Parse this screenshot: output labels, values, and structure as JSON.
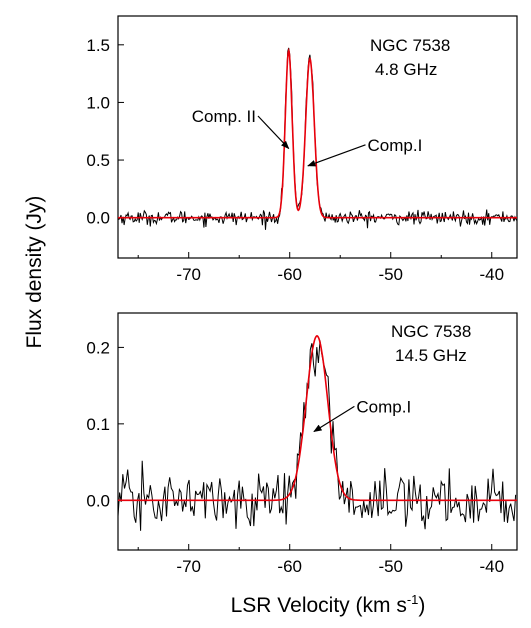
{
  "chart_data": [
    {
      "type": "line",
      "panel": "top",
      "annotation_lines": [
        "NGC 7538",
        "4.8 GHz"
      ],
      "xlim": [
        -77,
        -37.5
      ],
      "ylim": [
        -0.35,
        1.75
      ],
      "x_ticks": [
        -70,
        -60,
        -50,
        -40
      ],
      "x_tick_labels": [
        "-70",
        "-60",
        "-50",
        "-40"
      ],
      "y_ticks": [
        0.0,
        0.5,
        1.0,
        1.5
      ],
      "y_tick_labels": [
        "0.0",
        "0.5",
        "1.0",
        "1.5"
      ],
      "grid": false,
      "series": [
        {
          "style": "observed spectrum",
          "color": "#000000",
          "noise_sigma": 0.03,
          "peaks": [
            {
              "center": -60.1,
              "amplitude": 1.5,
              "fwhm": 0.8
            },
            {
              "center": -58.0,
              "amplitude": 1.42,
              "fwhm": 1.0
            }
          ]
        },
        {
          "style": "gaussian fit",
          "color": "#e8000b",
          "peaks": [
            {
              "center": -60.1,
              "amplitude": 1.45,
              "fwhm": 0.8
            },
            {
              "center": -58.0,
              "amplitude": 1.38,
              "fwhm": 1.0
            }
          ]
        }
      ],
      "annotations": [
        {
          "text": "Comp. II",
          "arrow_to": [
            -60.1,
            0.6
          ],
          "text_at": [
            -69.7,
            0.83
          ]
        },
        {
          "text": "Comp.I",
          "arrow_to": [
            -58.2,
            0.45
          ],
          "text_at": [
            -52.3,
            0.58
          ]
        }
      ]
    },
    {
      "type": "line",
      "panel": "bottom",
      "annotation_lines": [
        "NGC 7538",
        "14.5 GHz"
      ],
      "xlim": [
        -77,
        -37.5
      ],
      "ylim": [
        -0.065,
        0.245
      ],
      "x_ticks": [
        -70,
        -60,
        -50,
        -40
      ],
      "x_tick_labels": [
        "-70",
        "-60",
        "-50",
        "-40"
      ],
      "y_ticks": [
        0.0,
        0.1,
        0.2
      ],
      "y_tick_labels": [
        "0.0",
        "0.1",
        "0.2"
      ],
      "grid": false,
      "series": [
        {
          "style": "observed spectrum",
          "color": "#000000",
          "noise_sigma": 0.018,
          "peaks": [
            {
              "center": -57.3,
              "amplitude": 0.215,
              "fwhm": 2.5
            }
          ]
        },
        {
          "style": "gaussian fit",
          "color": "#e8000b",
          "peaks": [
            {
              "center": -57.3,
              "amplitude": 0.215,
              "fwhm": 2.5
            }
          ]
        }
      ],
      "annotations": [
        {
          "text": "Comp.I",
          "arrow_to": [
            -57.6,
            0.09
          ],
          "text_at": [
            -53.4,
            0.115
          ]
        }
      ]
    }
  ],
  "shared_ylabel": "Flux density (Jy)",
  "shared_xlabel_main": "LSR Velocity (km s",
  "shared_xlabel_sup": "-1",
  "shared_xlabel_close": ")"
}
